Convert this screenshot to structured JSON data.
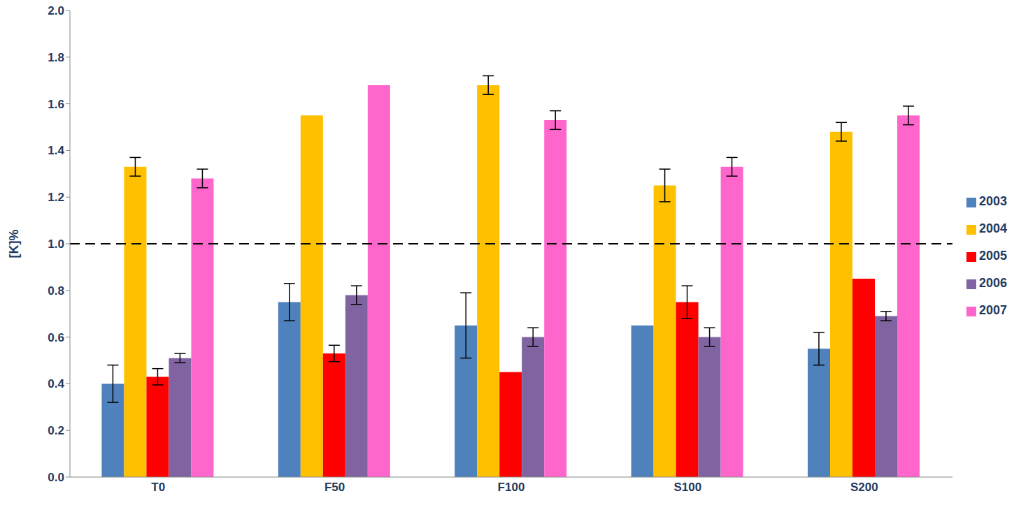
{
  "chart_data": {
    "type": "bar",
    "y_label": "[K]%",
    "categories": [
      "T0",
      "F50",
      "F100",
      "S100",
      "S200"
    ],
    "series": [
      {
        "name": "2003",
        "color": "#4f81bd",
        "values": [
          0.4,
          0.75,
          0.65,
          0.65,
          0.55
        ],
        "errors": [
          0.08,
          0.08,
          0.14,
          0,
          0.07
        ]
      },
      {
        "name": "2004",
        "color": "#ffc000",
        "values": [
          1.33,
          1.55,
          1.68,
          1.25,
          1.48
        ],
        "errors": [
          0.04,
          0,
          0.04,
          0.07,
          0.04
        ]
      },
      {
        "name": "2005",
        "color": "#ff0000",
        "values": [
          0.43,
          0.53,
          0.45,
          0.75,
          0.85
        ],
        "errors": [
          0.035,
          0.035,
          0,
          0.07,
          0
        ]
      },
      {
        "name": "2006",
        "color": "#8064a2",
        "values": [
          0.51,
          0.78,
          0.6,
          0.6,
          0.69
        ],
        "errors": [
          0.02,
          0.04,
          0.04,
          0.04,
          0.02
        ]
      },
      {
        "name": "2007",
        "color": "#ff66cc",
        "values": [
          1.28,
          1.68,
          1.53,
          1.33,
          1.55
        ],
        "errors": [
          0.04,
          0,
          0.04,
          0.04,
          0.04
        ]
      }
    ],
    "ylim": [
      0,
      2
    ],
    "yticks": [
      {
        "value": 0,
        "label": "0.0"
      },
      0.2,
      0.4,
      0.6,
      0.8,
      {
        "value": 1,
        "label": "1.0"
      },
      1.2,
      1.4,
      1.6,
      1.8,
      {
        "value": 2,
        "label": "2.0"
      }
    ],
    "hline": 1,
    "line_style": "dashed",
    "grid": false,
    "legend": "right"
  }
}
